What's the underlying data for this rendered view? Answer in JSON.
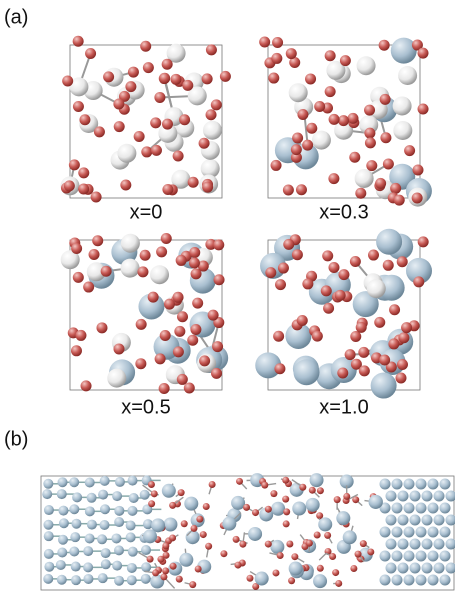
{
  "panel_a": {
    "label": "(a)",
    "structures": [
      {
        "label": "x=0"
      },
      {
        "label": "x=0.3"
      },
      {
        "label": "x=0.5"
      },
      {
        "label": "x=1.0"
      }
    ]
  },
  "panel_b": {
    "label": "(b)"
  }
}
